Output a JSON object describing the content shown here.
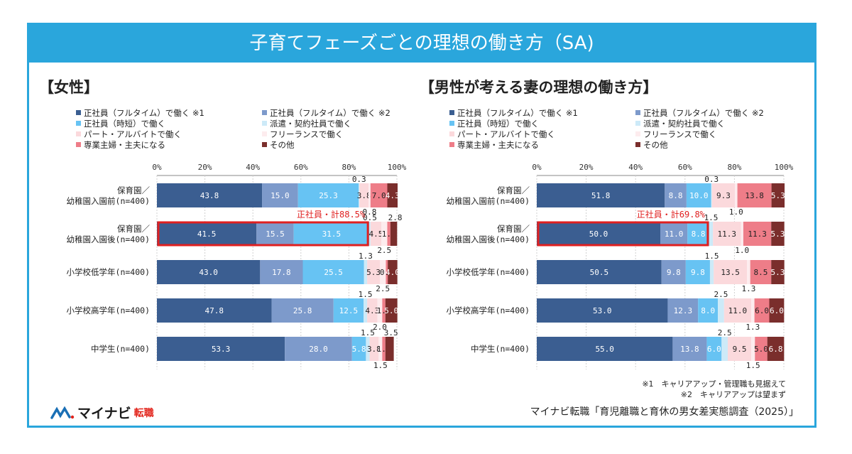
{
  "banner_title": "子育てフェーズごとの理想の働き方（SA)",
  "colors": {
    "fulltime1": "#3b5e91",
    "fulltime2": "#7d9acb",
    "short": "#67c3f3",
    "dispatch": "#cdeaf8",
    "part": "#fbd9dc",
    "freelance": "#fdecee",
    "homemaker": "#ee7d88",
    "other": "#7a2e2c",
    "highlight": "#e02020",
    "accent": "#2aa6dc"
  },
  "legend": [
    {
      "key": "fulltime1",
      "label": "正社員（フルタイム）で働く ※1"
    },
    {
      "key": "fulltime2",
      "label": "正社員（フルタイム）で働く ※2"
    },
    {
      "key": "short",
      "label": "正社員（時短）で働く"
    },
    {
      "key": "dispatch",
      "label": "派遣・契約社員で働く"
    },
    {
      "key": "part",
      "label": "パート・アルバイトで働く"
    },
    {
      "key": "freelance",
      "label": "フリーランスで働く"
    },
    {
      "key": "homemaker",
      "label": "専業主婦・主夫になる"
    },
    {
      "key": "other",
      "label": "その他"
    }
  ],
  "chart_data": [
    {
      "type": "bar",
      "orientation": "horizontal-stacked",
      "title": "【女性】",
      "xlim": [
        0,
        100
      ],
      "ticks": [
        "0%",
        "20%",
        "40%",
        "60%",
        "80%",
        "100%"
      ],
      "categories": [
        "保育園／幼稚園入園前(n=400)",
        "保育園／幼稚園入園後(n=400)",
        "小学校低学年(n=400)",
        "小学校高学年(n=400)",
        "中学生(n=400)"
      ],
      "category_lines": [
        [
          "保育園／",
          "幼稚園入園前(n=400)"
        ],
        [
          "保育園／",
          "幼稚園入園後(n=400)"
        ],
        [
          "小学校低学年(n=400)"
        ],
        [
          "小学校高学年(n=400)"
        ],
        [
          "中学生(n=400)"
        ]
      ],
      "series": [
        {
          "key": "fulltime1",
          "values": [
            43.8,
            41.5,
            43.0,
            47.8,
            53.3
          ]
        },
        {
          "key": "fulltime2",
          "values": [
            15.0,
            15.5,
            17.8,
            25.8,
            28.0
          ]
        },
        {
          "key": "short",
          "values": [
            25.3,
            31.5,
            25.5,
            12.5,
            5.8
          ]
        },
        {
          "key": "dispatch",
          "values": [
            0.3,
            0.5,
            1.3,
            1.5,
            1.5
          ]
        },
        {
          "key": "part",
          "values": [
            3.8,
            4.5,
            5.3,
            4.3,
            3.8
          ]
        },
        {
          "key": "freelance",
          "values": [
            0.8,
            2.5,
            2.5,
            2.0,
            1.5
          ]
        },
        {
          "key": "homemaker",
          "values": [
            7.0,
            1.3,
            0.8,
            1.3,
            1.3
          ]
        },
        {
          "key": "other",
          "values": [
            4.3,
            2.8,
            4.0,
            5.0,
            3.5
          ]
        }
      ],
      "highlight": {
        "category_index": 1,
        "label": "正社員・計88.5%"
      }
    },
    {
      "type": "bar",
      "orientation": "horizontal-stacked",
      "title": "【男性が考える妻の理想の働き方】",
      "xlim": [
        0,
        100
      ],
      "ticks": [
        "0%",
        "20%",
        "40%",
        "60%",
        "80%",
        "100%"
      ],
      "categories": [
        "保育園／幼稚園入園前(n=400)",
        "保育園／幼稚園入園後(n=400)",
        "小学校低学年(n=400)",
        "小学校高学年(n=400)",
        "中学生(n=400)"
      ],
      "category_lines": [
        [
          "保育園／",
          "幼稚園入園前(n=400)"
        ],
        [
          "保育園／",
          "幼稚園入園後(n=400)"
        ],
        [
          "小学校低学年(n=400)"
        ],
        [
          "小学校高学年(n=400)"
        ],
        [
          "中学生(n=400)"
        ]
      ],
      "series": [
        {
          "key": "fulltime1",
          "values": [
            51.8,
            50.0,
            50.5,
            53.0,
            55.0
          ]
        },
        {
          "key": "fulltime2",
          "values": [
            8.8,
            11.0,
            9.8,
            12.3,
            13.8
          ]
        },
        {
          "key": "short",
          "values": [
            10.0,
            8.8,
            9.8,
            8.0,
            6.0
          ]
        },
        {
          "key": "dispatch",
          "values": [
            0.3,
            1.5,
            1.5,
            2.5,
            2.5
          ]
        },
        {
          "key": "part",
          "values": [
            9.3,
            11.3,
            13.5,
            11.0,
            9.5
          ]
        },
        {
          "key": "freelance",
          "values": [
            1.0,
            1.0,
            1.3,
            1.3,
            1.5
          ]
        },
        {
          "key": "homemaker",
          "values": [
            13.8,
            11.3,
            8.5,
            6.0,
            5.0
          ]
        },
        {
          "key": "other",
          "values": [
            5.3,
            5.3,
            5.3,
            6.0,
            6.8
          ]
        }
      ],
      "highlight": {
        "category_index": 1,
        "label": "正社員・計69.8%"
      }
    }
  ],
  "notes": [
    "※1　キャリアアップ・管理職も見据えて",
    "※2　キャリアアップは望まず"
  ],
  "source": "マイナビ転職「育児離職と育休の男女差実態調査（2025）」",
  "logo": {
    "name": "マイナビ",
    "sub": "転職"
  }
}
